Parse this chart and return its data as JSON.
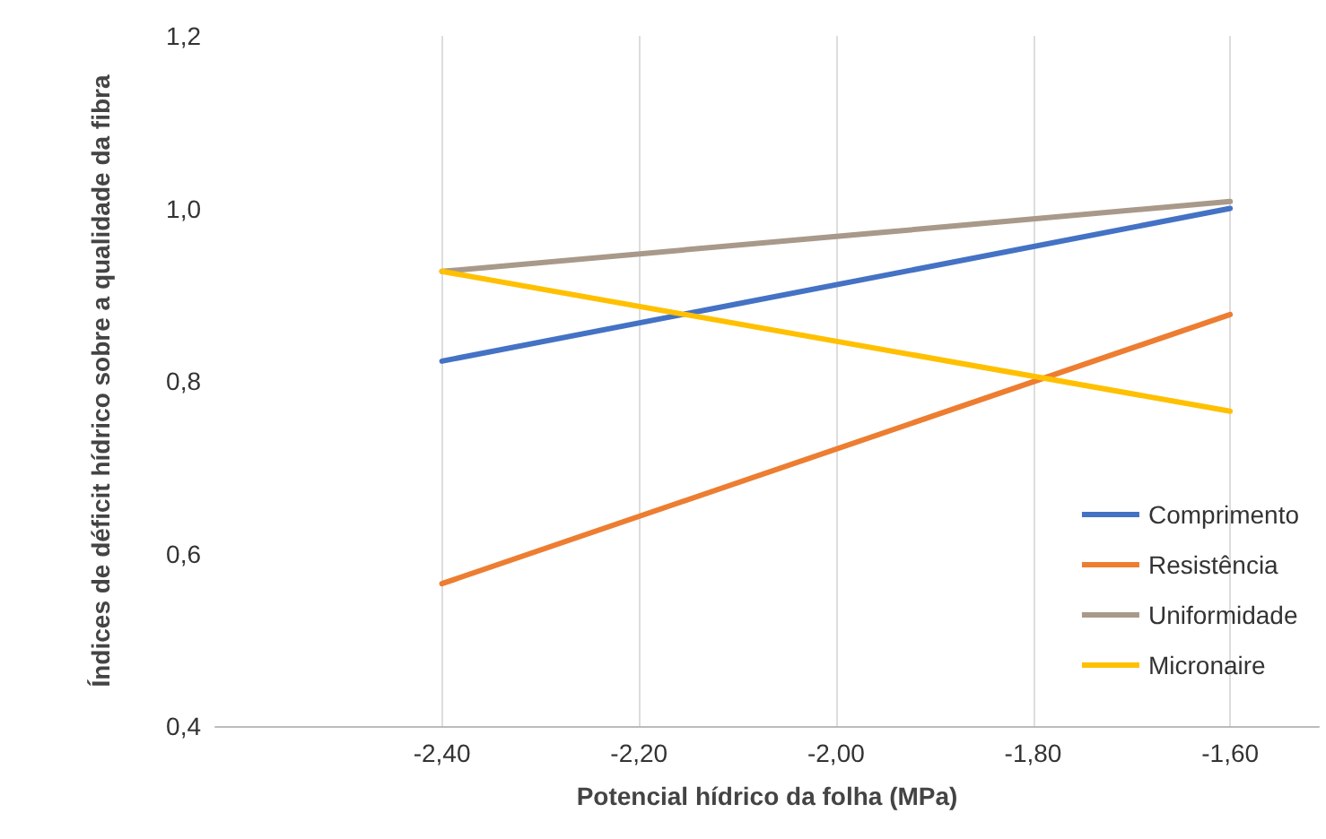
{
  "chart_data": {
    "type": "line",
    "xlabel": "Potencial hídrico da folha (MPa)",
    "ylabel": "Índices de déficit hídrico sobre a qualidade da fibra",
    "x": [
      -2.4,
      -1.6
    ],
    "series": [
      {
        "name": "Comprimento",
        "color": "#4472c4",
        "values": [
          0.823,
          1.0
        ]
      },
      {
        "name": "Resistência",
        "color": "#ed7d31",
        "values": [
          0.565,
          0.877
        ]
      },
      {
        "name": "Uniformidade",
        "color": "#a8998a",
        "values": [
          0.927,
          1.008
        ]
      },
      {
        "name": "Micronaire",
        "color": "#ffc000",
        "values": [
          0.927,
          0.765
        ]
      }
    ],
    "xlim": [
      -2.63,
      -1.51
    ],
    "xticks": [
      {
        "value": -2.4,
        "label": "-2,40"
      },
      {
        "value": -2.2,
        "label": "-2,20"
      },
      {
        "value": -2.0,
        "label": "-2,00"
      },
      {
        "value": -1.8,
        "label": "-1,80"
      },
      {
        "value": -1.6,
        "label": "-1,60"
      }
    ],
    "ylim": [
      0.4,
      1.2
    ],
    "yticks": [
      {
        "value": 0.4,
        "label": "0,4"
      },
      {
        "value": 0.6,
        "label": "0,6"
      },
      {
        "value": 0.8,
        "label": "0,8"
      },
      {
        "value": 1.0,
        "label": "1,0"
      },
      {
        "value": 1.2,
        "label": "1,2"
      }
    ],
    "grid": "x",
    "legend": "bottom right",
    "marker": "none",
    "line_style": "solid"
  }
}
